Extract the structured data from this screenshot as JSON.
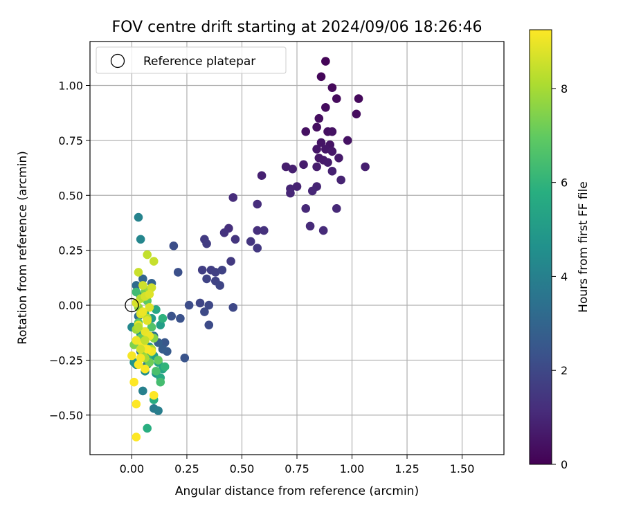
{
  "chart_data": {
    "type": "scatter",
    "title": "FOV centre drift starting at 2024/09/06 18:26:46",
    "xlabel": "Angular distance from reference (arcmin)",
    "ylabel": "Rotation from reference (arcmin)",
    "xlim": [
      -0.19,
      1.69
    ],
    "ylim": [
      -0.68,
      1.2
    ],
    "xticks": [
      "0.00",
      "0.25",
      "0.50",
      "0.75",
      "1.00",
      "1.25",
      "1.50"
    ],
    "yticks": [
      "−0.50",
      "−0.25",
      "0.00",
      "0.25",
      "0.50",
      "0.75",
      "1.00"
    ],
    "xtick_values": [
      0,
      0.25,
      0.5,
      0.75,
      1.0,
      1.25,
      1.5
    ],
    "ytick_values": [
      -0.5,
      -0.25,
      0,
      0.25,
      0.5,
      0.75,
      1.0
    ],
    "grid": true,
    "legend": {
      "placement": "top-left",
      "entries": [
        "Reference platepar"
      ]
    },
    "reference_point": {
      "x": 0.0,
      "y": 0.0
    },
    "colorbar": {
      "label": "Hours from first FF file",
      "colormap": "viridis",
      "range": [
        0,
        9.25
      ],
      "ticks": [
        "0",
        "2",
        "4",
        "6",
        "8"
      ],
      "tick_values": [
        0,
        2,
        4,
        6,
        8
      ]
    },
    "points": [
      {
        "x": 0.88,
        "y": 1.11,
        "h": 0.1
      },
      {
        "x": 0.86,
        "y": 1.04,
        "h": 0.15
      },
      {
        "x": 0.91,
        "y": 0.99,
        "h": 0.2
      },
      {
        "x": 1.03,
        "y": 0.94,
        "h": 0.2
      },
      {
        "x": 0.93,
        "y": 0.94,
        "h": 0.25
      },
      {
        "x": 0.88,
        "y": 0.9,
        "h": 0.3
      },
      {
        "x": 1.02,
        "y": 0.87,
        "h": 0.3
      },
      {
        "x": 0.85,
        "y": 0.85,
        "h": 0.35
      },
      {
        "x": 0.84,
        "y": 0.81,
        "h": 0.35
      },
      {
        "x": 0.79,
        "y": 0.79,
        "h": 0.4
      },
      {
        "x": 0.89,
        "y": 0.79,
        "h": 0.4
      },
      {
        "x": 0.91,
        "y": 0.79,
        "h": 0.45
      },
      {
        "x": 0.98,
        "y": 0.75,
        "h": 0.45
      },
      {
        "x": 0.86,
        "y": 0.74,
        "h": 0.5
      },
      {
        "x": 0.9,
        "y": 0.73,
        "h": 0.5
      },
      {
        "x": 0.84,
        "y": 0.71,
        "h": 0.55
      },
      {
        "x": 0.88,
        "y": 0.71,
        "h": 0.55
      },
      {
        "x": 0.91,
        "y": 0.7,
        "h": 0.6
      },
      {
        "x": 0.85,
        "y": 0.67,
        "h": 0.6
      },
      {
        "x": 0.94,
        "y": 0.67,
        "h": 0.65
      },
      {
        "x": 0.87,
        "y": 0.66,
        "h": 0.65
      },
      {
        "x": 0.89,
        "y": 0.65,
        "h": 0.7
      },
      {
        "x": 0.78,
        "y": 0.64,
        "h": 0.7
      },
      {
        "x": 0.84,
        "y": 0.63,
        "h": 0.75
      },
      {
        "x": 0.7,
        "y": 0.63,
        "h": 0.75
      },
      {
        "x": 1.06,
        "y": 0.63,
        "h": 0.8
      },
      {
        "x": 0.73,
        "y": 0.62,
        "h": 0.8
      },
      {
        "x": 0.91,
        "y": 0.61,
        "h": 0.85
      },
      {
        "x": 0.59,
        "y": 0.59,
        "h": 0.85
      },
      {
        "x": 0.95,
        "y": 0.57,
        "h": 0.9
      },
      {
        "x": 0.75,
        "y": 0.54,
        "h": 0.9
      },
      {
        "x": 0.84,
        "y": 0.54,
        "h": 0.95
      },
      {
        "x": 0.72,
        "y": 0.53,
        "h": 0.95
      },
      {
        "x": 0.82,
        "y": 0.52,
        "h": 1.0
      },
      {
        "x": 0.72,
        "y": 0.51,
        "h": 1.0
      },
      {
        "x": 0.79,
        "y": 0.44,
        "h": 1.05
      },
      {
        "x": 0.93,
        "y": 0.44,
        "h": 1.05
      },
      {
        "x": 0.81,
        "y": 0.36,
        "h": 1.1
      },
      {
        "x": 0.87,
        "y": 0.34,
        "h": 1.1
      },
      {
        "x": 0.46,
        "y": 0.49,
        "h": 1.15
      },
      {
        "x": 0.57,
        "y": 0.46,
        "h": 1.2
      },
      {
        "x": 0.44,
        "y": 0.35,
        "h": 1.25
      },
      {
        "x": 0.57,
        "y": 0.34,
        "h": 1.25
      },
      {
        "x": 0.6,
        "y": 0.34,
        "h": 1.3
      },
      {
        "x": 0.42,
        "y": 0.33,
        "h": 1.35
      },
      {
        "x": 0.47,
        "y": 0.3,
        "h": 1.4
      },
      {
        "x": 0.54,
        "y": 0.29,
        "h": 1.45
      },
      {
        "x": 0.57,
        "y": 0.26,
        "h": 1.5
      },
      {
        "x": 0.45,
        "y": 0.2,
        "h": 1.55
      },
      {
        "x": 0.33,
        "y": 0.3,
        "h": 1.6
      },
      {
        "x": 0.34,
        "y": 0.28,
        "h": 1.65
      },
      {
        "x": 0.32,
        "y": 0.16,
        "h": 1.7
      },
      {
        "x": 0.36,
        "y": 0.16,
        "h": 1.7
      },
      {
        "x": 0.38,
        "y": 0.15,
        "h": 1.75
      },
      {
        "x": 0.41,
        "y": 0.16,
        "h": 1.8
      },
      {
        "x": 0.34,
        "y": 0.12,
        "h": 1.85
      },
      {
        "x": 0.38,
        "y": 0.11,
        "h": 1.85
      },
      {
        "x": 0.4,
        "y": 0.09,
        "h": 1.9
      },
      {
        "x": 0.31,
        "y": 0.01,
        "h": 1.95
      },
      {
        "x": 0.35,
        "y": 0.0,
        "h": 2.0
      },
      {
        "x": 0.46,
        "y": -0.01,
        "h": 2.0
      },
      {
        "x": 0.33,
        "y": -0.03,
        "h": 2.05
      },
      {
        "x": 0.35,
        "y": -0.09,
        "h": 2.1
      },
      {
        "x": 0.26,
        "y": 0.0,
        "h": 2.15
      },
      {
        "x": 0.19,
        "y": 0.27,
        "h": 2.2
      },
      {
        "x": 0.21,
        "y": 0.15,
        "h": 2.25
      },
      {
        "x": 0.22,
        "y": -0.06,
        "h": 2.3
      },
      {
        "x": 0.18,
        "y": -0.05,
        "h": 2.35
      },
      {
        "x": 0.24,
        "y": -0.24,
        "h": 2.4
      },
      {
        "x": 0.15,
        "y": -0.17,
        "h": 2.5
      },
      {
        "x": 0.16,
        "y": -0.21,
        "h": 2.6
      },
      {
        "x": 0.14,
        "y": -0.2,
        "h": 2.7
      },
      {
        "x": 0.12,
        "y": -0.17,
        "h": 2.8
      },
      {
        "x": 0.09,
        "y": 0.1,
        "h": 2.9
      },
      {
        "x": 0.05,
        "y": 0.12,
        "h": 3.0
      },
      {
        "x": 0.04,
        "y": 0.04,
        "h": 3.1
      },
      {
        "x": 0.02,
        "y": 0.09,
        "h": 3.2
      },
      {
        "x": 0.03,
        "y": -0.05,
        "h": 3.3
      },
      {
        "x": 0.06,
        "y": -0.12,
        "h": 3.4
      },
      {
        "x": 0.1,
        "y": -0.14,
        "h": 3.5
      },
      {
        "x": 0.04,
        "y": -0.21,
        "h": 3.6
      },
      {
        "x": 0.07,
        "y": -0.27,
        "h": 3.7
      },
      {
        "x": 0.1,
        "y": -0.47,
        "h": 3.8
      },
      {
        "x": 0.12,
        "y": -0.48,
        "h": 3.9
      },
      {
        "x": 0.05,
        "y": -0.39,
        "h": 4.0
      },
      {
        "x": 0.03,
        "y": 0.4,
        "h": 4.1
      },
      {
        "x": 0.04,
        "y": 0.3,
        "h": 4.2
      },
      {
        "x": 0.0,
        "y": -0.1,
        "h": 4.3
      },
      {
        "x": 0.02,
        "y": -0.27,
        "h": 4.4
      },
      {
        "x": 0.06,
        "y": -0.3,
        "h": 4.5
      },
      {
        "x": 0.08,
        "y": -0.19,
        "h": 4.6
      },
      {
        "x": 0.11,
        "y": -0.31,
        "h": 4.7
      },
      {
        "x": 0.01,
        "y": -0.26,
        "h": 4.8
      },
      {
        "x": 0.04,
        "y": -0.13,
        "h": 4.9
      },
      {
        "x": 0.09,
        "y": -0.06,
        "h": 5.0
      },
      {
        "x": 0.13,
        "y": -0.09,
        "h": 5.1
      },
      {
        "x": 0.1,
        "y": -0.23,
        "h": 5.2
      },
      {
        "x": 0.12,
        "y": -0.26,
        "h": 5.3
      },
      {
        "x": 0.14,
        "y": -0.29,
        "h": 5.4
      },
      {
        "x": 0.11,
        "y": -0.02,
        "h": 5.5
      },
      {
        "x": 0.13,
        "y": -0.33,
        "h": 5.6
      },
      {
        "x": 0.1,
        "y": -0.43,
        "h": 5.7
      },
      {
        "x": 0.07,
        "y": -0.56,
        "h": 5.8
      },
      {
        "x": 0.14,
        "y": -0.06,
        "h": 5.9
      },
      {
        "x": 0.15,
        "y": -0.28,
        "h": 6.0
      },
      {
        "x": 0.08,
        "y": -0.22,
        "h": 6.1
      },
      {
        "x": 0.06,
        "y": -0.04,
        "h": 6.2
      },
      {
        "x": 0.02,
        "y": 0.06,
        "h": 6.3
      },
      {
        "x": 0.13,
        "y": -0.35,
        "h": 6.4
      },
      {
        "x": 0.11,
        "y": -0.3,
        "h": 6.5
      },
      {
        "x": 0.05,
        "y": -0.18,
        "h": 6.6
      },
      {
        "x": 0.09,
        "y": -0.1,
        "h": 6.7
      },
      {
        "x": 0.03,
        "y": -0.08,
        "h": 6.8
      },
      {
        "x": 0.07,
        "y": 0.02,
        "h": 6.9
      },
      {
        "x": 0.12,
        "y": -0.25,
        "h": 7.0
      },
      {
        "x": 0.04,
        "y": -0.15,
        "h": 7.1
      },
      {
        "x": 0.08,
        "y": -0.26,
        "h": 7.2
      },
      {
        "x": 0.06,
        "y": 0.06,
        "h": 7.3
      },
      {
        "x": 0.01,
        "y": -0.18,
        "h": 7.4
      },
      {
        "x": 0.1,
        "y": -0.15,
        "h": 7.5
      },
      {
        "x": 0.05,
        "y": -0.22,
        "h": 7.6
      },
      {
        "x": 0.03,
        "y": -0.01,
        "h": 7.7
      },
      {
        "x": 0.08,
        "y": 0.07,
        "h": 7.8
      },
      {
        "x": 0.02,
        "y": -0.11,
        "h": 7.9
      },
      {
        "x": 0.06,
        "y": -0.24,
        "h": 8.0
      },
      {
        "x": 0.09,
        "y": -0.2,
        "h": 8.1
      },
      {
        "x": 0.04,
        "y": 0.03,
        "h": 8.2
      },
      {
        "x": 0.07,
        "y": -0.06,
        "h": 8.3
      },
      {
        "x": 0.07,
        "y": 0.23,
        "h": 8.4
      },
      {
        "x": 0.1,
        "y": 0.2,
        "h": 8.45
      },
      {
        "x": 0.03,
        "y": 0.15,
        "h": 8.5
      },
      {
        "x": 0.05,
        "y": 0.09,
        "h": 8.55
      },
      {
        "x": 0.09,
        "y": 0.08,
        "h": 8.6
      },
      {
        "x": 0.06,
        "y": 0.04,
        "h": 8.65
      },
      {
        "x": 0.02,
        "y": 0.01,
        "h": 8.7
      },
      {
        "x": 0.08,
        "y": -0.01,
        "h": 8.75
      },
      {
        "x": 0.04,
        "y": -0.04,
        "h": 8.8
      },
      {
        "x": 0.07,
        "y": -0.07,
        "h": 8.85
      },
      {
        "x": 0.03,
        "y": -0.09,
        "h": 8.9
      },
      {
        "x": 0.06,
        "y": -0.12,
        "h": 8.95
      },
      {
        "x": 0.08,
        "y": -0.14,
        "h": 9.0
      },
      {
        "x": 0.02,
        "y": -0.16,
        "h": 9.05
      },
      {
        "x": 0.05,
        "y": -0.18,
        "h": 9.1
      },
      {
        "x": 0.09,
        "y": -0.21,
        "h": 9.1
      },
      {
        "x": 0.0,
        "y": -0.23,
        "h": 9.15
      },
      {
        "x": 0.04,
        "y": -0.24,
        "h": 9.15
      },
      {
        "x": 0.07,
        "y": -0.2,
        "h": 9.2
      },
      {
        "x": 0.03,
        "y": -0.27,
        "h": 9.2
      },
      {
        "x": 0.06,
        "y": -0.29,
        "h": 9.2
      },
      {
        "x": 0.01,
        "y": -0.35,
        "h": 9.25
      },
      {
        "x": 0.1,
        "y": -0.41,
        "h": 9.25
      },
      {
        "x": 0.02,
        "y": -0.45,
        "h": 9.25
      },
      {
        "x": 0.02,
        "y": -0.6,
        "h": 9.25
      },
      {
        "x": 0.05,
        "y": -0.03,
        "h": 9.0
      },
      {
        "x": 0.08,
        "y": 0.05,
        "h": 8.8
      },
      {
        "x": 0.04,
        "y": -0.2,
        "h": 8.6
      },
      {
        "x": 0.06,
        "y": -0.16,
        "h": 8.4
      },
      {
        "x": 0.03,
        "y": -0.1,
        "h": 8.2
      }
    ]
  }
}
